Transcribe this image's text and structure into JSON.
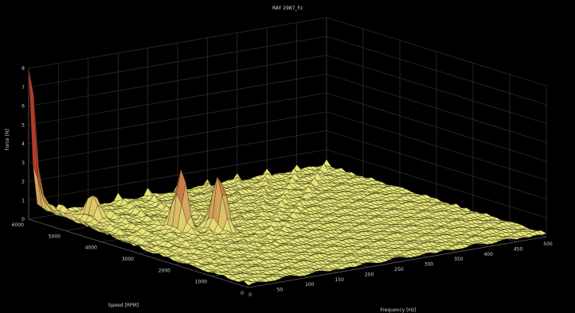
{
  "chart_data": {
    "type": "surface",
    "title": "RAY 2987_Fz",
    "zlabel": "Force [N]",
    "xlabel": "Frequency [Hz]",
    "ylabel": "Speed [RPM]",
    "z_ticks": [
      "0",
      "1",
      "2",
      "3",
      "4",
      "5",
      "6",
      "7",
      "8"
    ],
    "x_ticks": [
      "0",
      "50",
      "100",
      "150",
      "200",
      "250",
      "300",
      "350",
      "400",
      "450",
      "500"
    ],
    "y_ticks": [
      "0",
      "1000",
      "2000",
      "3000",
      "4000",
      "5000",
      "6000"
    ],
    "zlim": [
      0,
      8
    ],
    "xlim": [
      0,
      500
    ],
    "ylim": [
      0,
      6000
    ],
    "peaks": [
      {
        "frequency_hz": 0,
        "speed_rpm": 6000,
        "force_n": 7.8
      },
      {
        "frequency_hz": 60,
        "speed_rpm": 5200,
        "force_n": 1.5
      },
      {
        "frequency_hz": 120,
        "speed_rpm": 3800,
        "force_n": 3.2
      },
      {
        "frequency_hz": 160,
        "speed_rpm": 3400,
        "force_n": 3.1
      }
    ],
    "grid": true,
    "colormap": "yellow-to-red",
    "background_color": "#000000",
    "surface_color": "#e8e87a",
    "peak_color": "#c0392b"
  }
}
